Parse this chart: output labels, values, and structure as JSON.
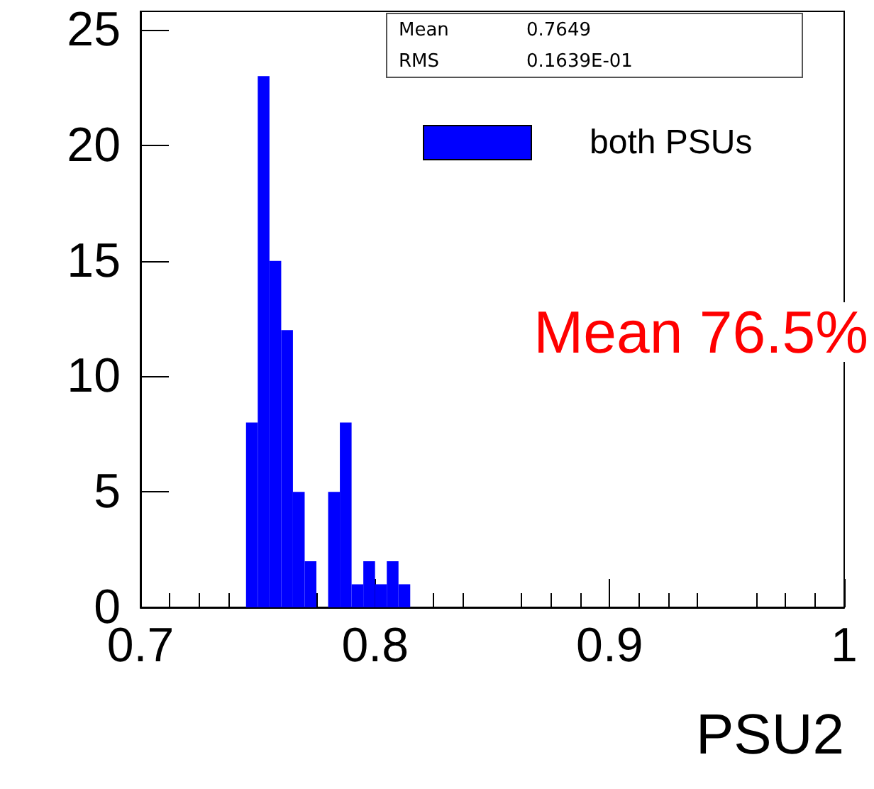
{
  "chart_data": {
    "type": "histogram",
    "xlabel": "PSU2",
    "bins": [
      0.745,
      0.75,
      0.755,
      0.76,
      0.765,
      0.77,
      0.775,
      0.78,
      0.785,
      0.79,
      0.795,
      0.8,
      0.805,
      0.81,
      0.815
    ],
    "series": [
      {
        "name": "both PSUs",
        "color": "#0000ff",
        "values": [
          8,
          23,
          15,
          12,
          5,
          2,
          0,
          5,
          8,
          1,
          2,
          1,
          2,
          1
        ]
      }
    ],
    "xlim": [
      0.7,
      1
    ],
    "xticks": [
      0.7,
      0.8,
      0.9,
      1
    ],
    "ylim": [
      0,
      25.8
    ],
    "yticks": [
      0,
      5,
      10,
      15,
      20,
      25
    ],
    "grid": false,
    "legend": "top right",
    "annotations": [
      "Mean 0.7649",
      "RMS 0.1639E-01",
      "Mean 76.5%"
    ]
  }
}
